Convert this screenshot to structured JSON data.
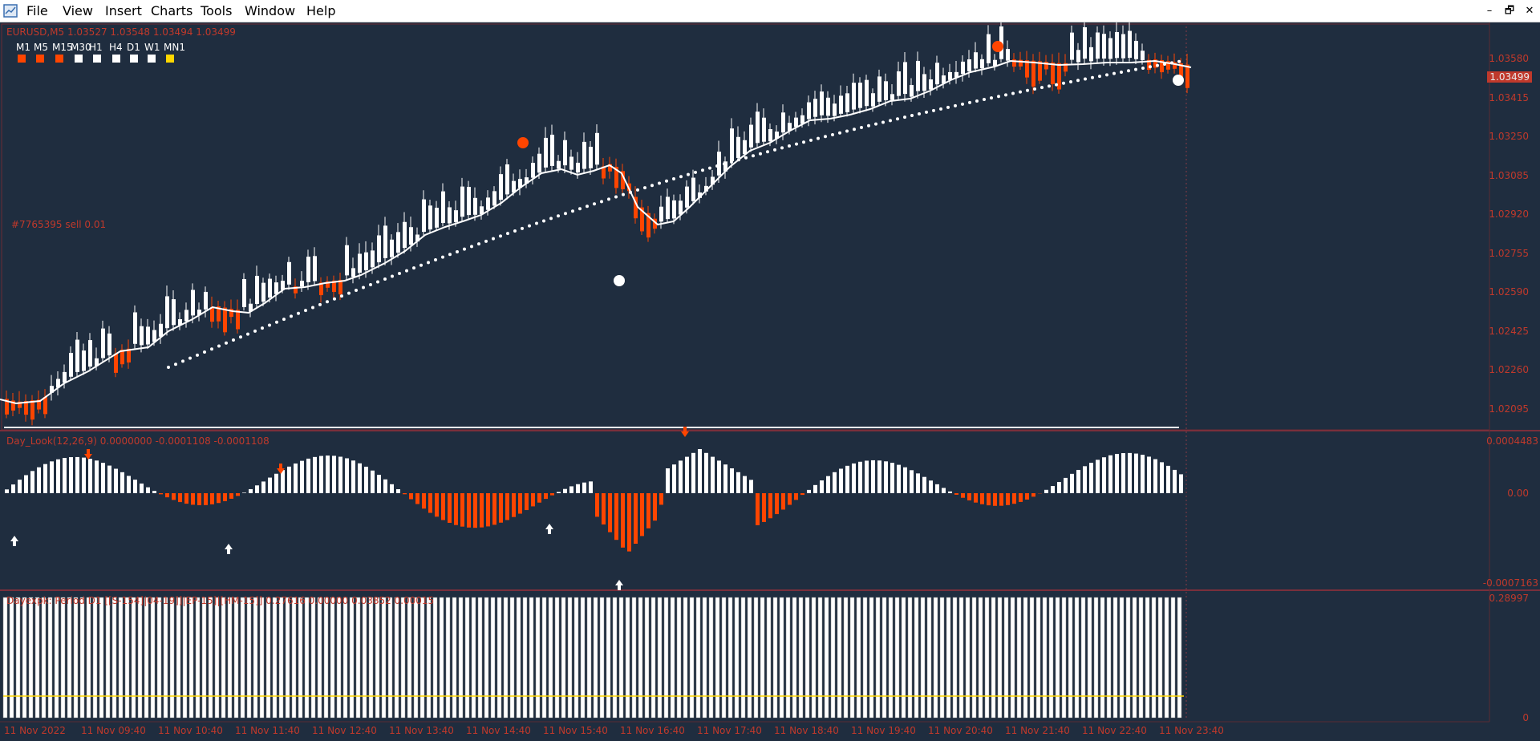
{
  "menu": {
    "items": [
      "File",
      "View",
      "Insert",
      "Charts",
      "Tools",
      "Window",
      "Help"
    ],
    "window_controls": [
      "–",
      "🗗",
      "✕"
    ]
  },
  "chart": {
    "header": "EURUSD,M5  1.03527 1.03548 1.03494 1.03499",
    "timeframes": [
      {
        "label": "M1",
        "color": "#ff4500"
      },
      {
        "label": "M5",
        "color": "#ff4500"
      },
      {
        "label": "M15",
        "color": "#ff4500"
      },
      {
        "label": "M30",
        "color": "#ffffff"
      },
      {
        "label": "H1",
        "color": "#ffffff"
      },
      {
        "label": "H4",
        "color": "#ffffff"
      },
      {
        "label": "D1",
        "color": "#ffffff"
      },
      {
        "label": "W1",
        "color": "#ffffff"
      },
      {
        "label": "MN1",
        "color": "#ffd700"
      }
    ],
    "order_label": "#7765395 sell 0.01",
    "current_price": "1.03499",
    "price_levels": [
      "1.03580",
      "1.03415",
      "1.03250",
      "1.03085",
      "1.02920",
      "1.02755",
      "1.02590",
      "1.02425",
      "1.02260",
      "1.02095"
    ],
    "indicator1_label": "Day_Look(12,26,9) 0.0000000 -0.0001108 -0.0001108",
    "indicator1_levels": [
      "0.0004483",
      "0.00",
      "-0.0007163"
    ],
    "indicator2_label": "Dayexpk: Period D1 [[S-154]|04-19]]|EP-15]|[HM-15]] 0.27616 0.00000 0.03852 0.00015",
    "indicator2_levels": [
      "0.28997",
      "0"
    ],
    "time_labels": [
      "11 Nov 2022",
      "11 Nov 09:40",
      "11 Nov 10:40",
      "11 Nov 11:40",
      "11 Nov 12:40",
      "11 Nov 13:40",
      "11 Nov 14:40",
      "11 Nov 15:40",
      "11 Nov 16:40",
      "11 Nov 17:40",
      "11 Nov 18:40",
      "11 Nov 19:40",
      "11 Nov 20:40",
      "11 Nov 21:40",
      "11 Nov 22:40",
      "11 Nov 23:40"
    ],
    "colors": {
      "bull": "#ffffff",
      "bear": "#ff4500",
      "text": "#c0392b",
      "background": "#1f2d3f"
    }
  }
}
